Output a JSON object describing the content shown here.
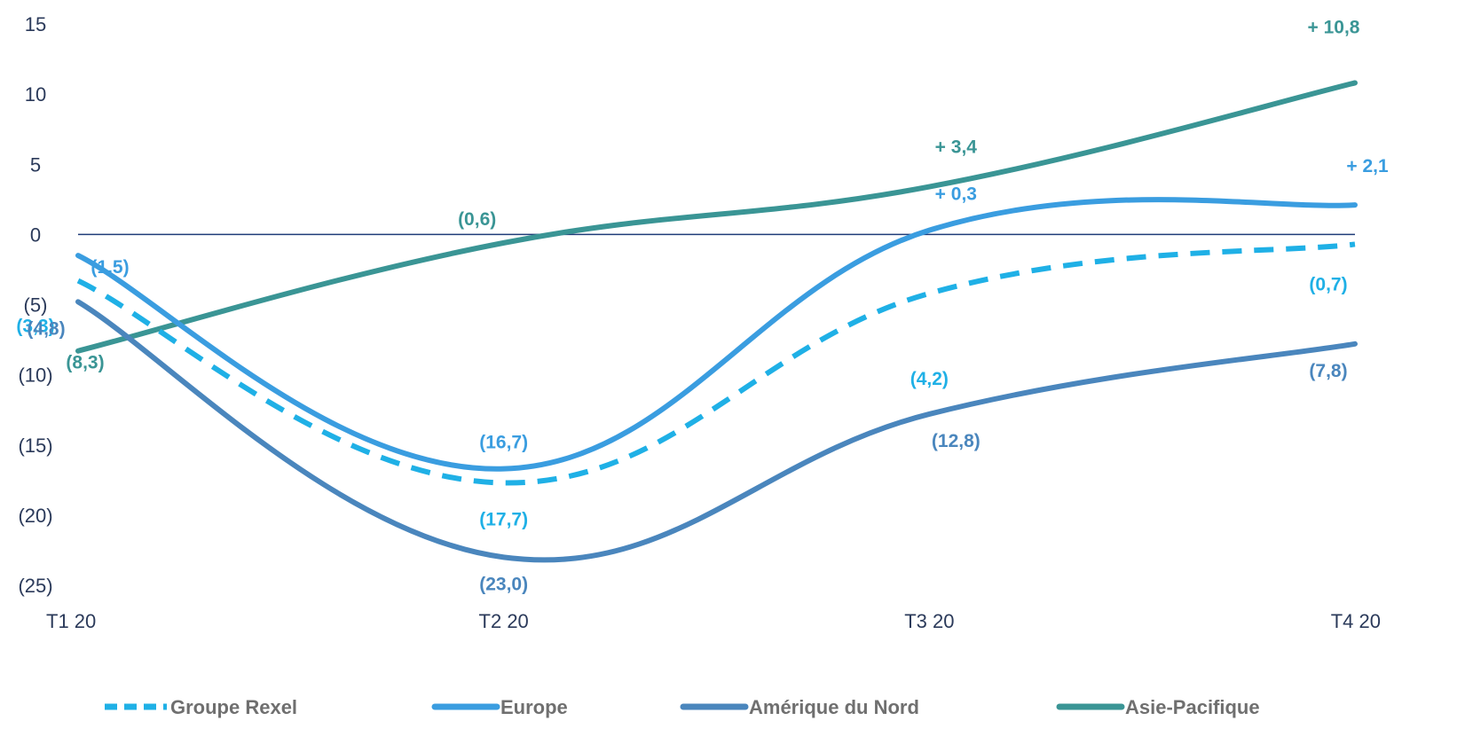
{
  "chart_data": {
    "type": "line",
    "categories": [
      "T1 20",
      "T2 20",
      "T3 20",
      "T4 20"
    ],
    "ylim": [
      -25,
      15
    ],
    "yticks": [
      {
        "value": 15,
        "label": "15"
      },
      {
        "value": 10,
        "label": "10"
      },
      {
        "value": 5,
        "label": "5"
      },
      {
        "value": 0,
        "label": "0"
      },
      {
        "value": -5,
        "label": "(5)"
      },
      {
        "value": -10,
        "label": "(10)"
      },
      {
        "value": -15,
        "label": "(15)"
      },
      {
        "value": -20,
        "label": "(20)"
      },
      {
        "value": -25,
        "label": "(25)"
      }
    ],
    "legend_position": "bottom",
    "grid": false,
    "series": [
      {
        "name": "Groupe Rexel",
        "color": "#1fb0e6",
        "dashed": true,
        "values": [
          -3.3,
          -17.7,
          -4.2,
          -0.7
        ],
        "labels": [
          "(3,3)",
          "(17,7)",
          "(4,2)",
          "(0,7)"
        ]
      },
      {
        "name": "Europe",
        "color": "#3a9de0",
        "dashed": false,
        "values": [
          -1.5,
          -16.7,
          0.3,
          2.1
        ],
        "labels": [
          "(1,5)",
          "(16,7)",
          "+ 0,3",
          "+ 2,1"
        ]
      },
      {
        "name": "Amérique du Nord",
        "color": "#4a86bd",
        "dashed": false,
        "values": [
          -4.8,
          -23.0,
          -12.8,
          -7.8
        ],
        "labels": [
          "(4,8)",
          "(23,0)",
          "(12,8)",
          "(7,8)"
        ]
      },
      {
        "name": "Asie-Pacifique",
        "color": "#3a9595",
        "dashed": false,
        "values": [
          -8.3,
          -0.6,
          3.4,
          10.8
        ],
        "labels": [
          "(8,3)",
          "(0,6)",
          "+ 3,4",
          "+ 10,8"
        ]
      }
    ]
  }
}
